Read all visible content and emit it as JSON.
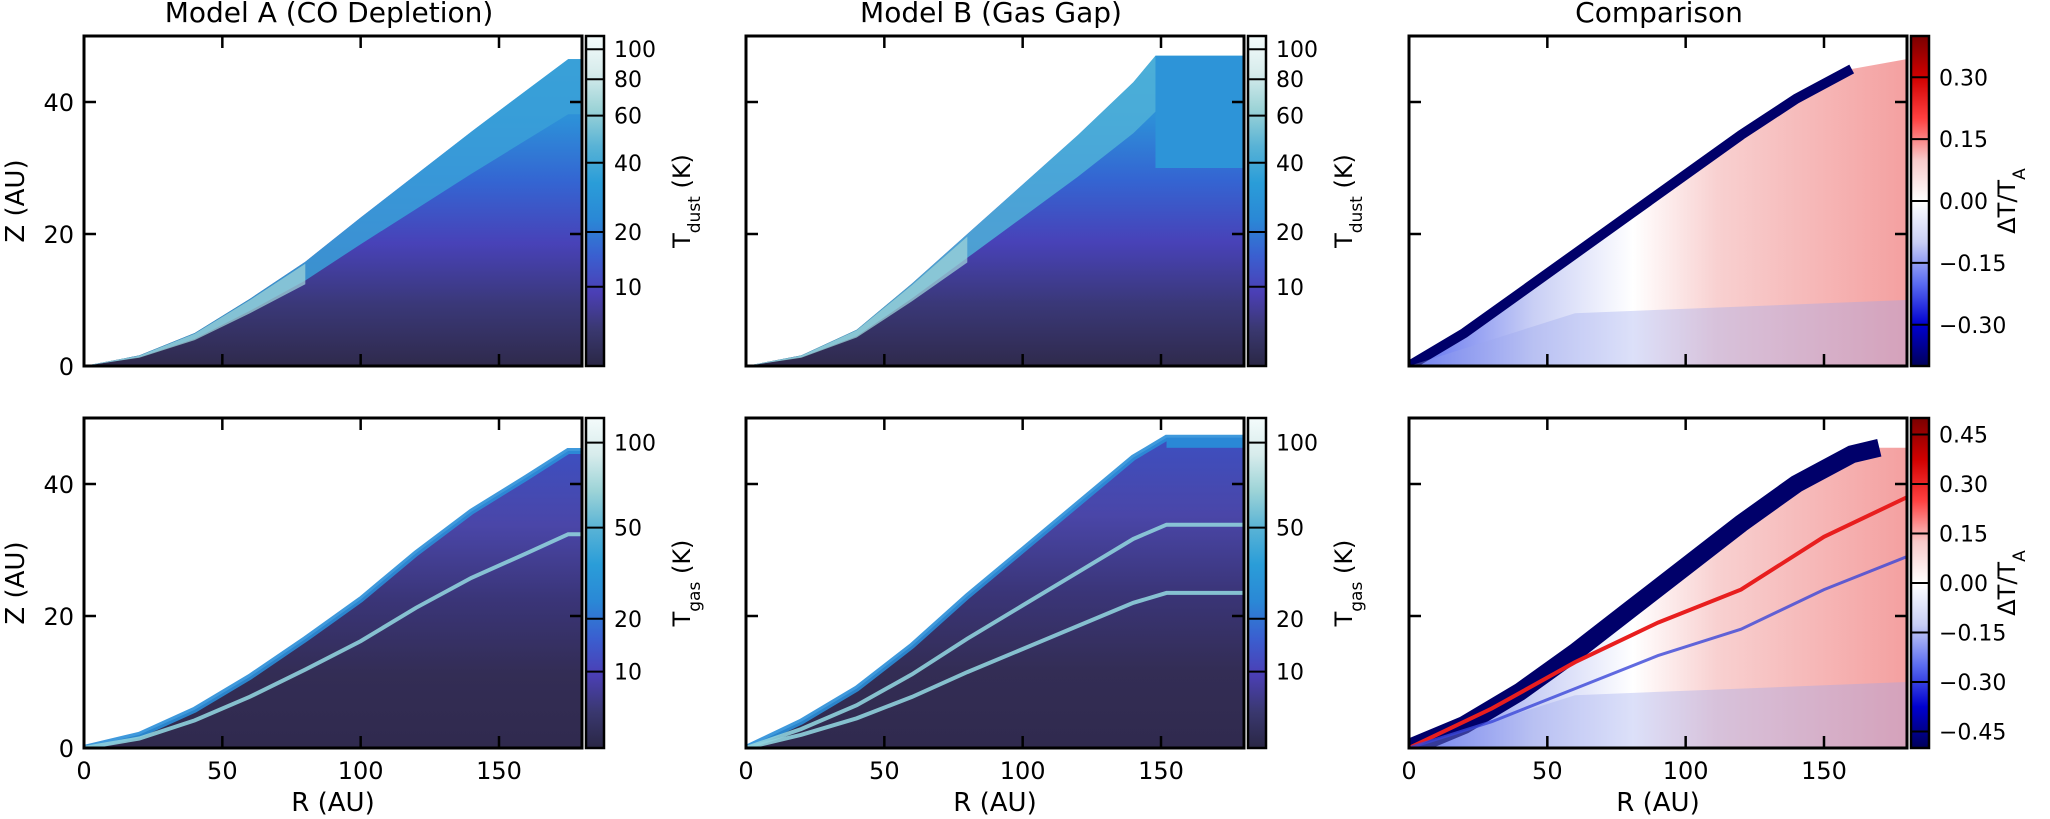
{
  "colors": {
    "temp_map": [
      "#2a2745",
      "#3a3870",
      "#4b3fb5",
      "#3a5fd0",
      "#2a88d6",
      "#2a9dd8",
      "#59b3d6",
      "#9cd3d7",
      "#d7ecec",
      "#f4fbfb"
    ],
    "diff_map": [
      "#00005a",
      "#0000d0",
      "#5a6cf0",
      "#c9cff5",
      "#ffffff",
      "#f8c9c9",
      "#ff4040",
      "#d00000",
      "#7a0000"
    ]
  },
  "titles": {
    "col_a": "Model A (CO Depletion)",
    "col_b": "Model B (Gas Gap)",
    "col_c": "Comparison"
  },
  "chart_data": [
    {
      "type": "heatmap",
      "id": "dust_a",
      "title": "Model A (CO Depletion)",
      "xlabel": "",
      "ylabel": "Z (AU)",
      "xlim": [
        0,
        180
      ],
      "ylim": [
        0,
        50
      ],
      "x_ticks": [
        0,
        50,
        100,
        150
      ],
      "y_ticks": [
        0,
        20,
        40
      ],
      "colorbar": {
        "label": "T_dust (K)",
        "ticks": [
          "10",
          "20",
          "40",
          "60",
          "80",
          "100"
        ],
        "range": [
          0,
          110
        ]
      },
      "surface_z": [
        [
          0,
          0
        ],
        [
          20,
          1.6
        ],
        [
          40,
          5.0
        ],
        [
          60,
          10.2
        ],
        [
          80,
          15.8
        ],
        [
          100,
          22.5
        ],
        [
          120,
          29.0
        ],
        [
          140,
          35.5
        ],
        [
          160,
          41.8
        ],
        [
          175,
          46.5
        ],
        [
          180,
          46.5
        ]
      ],
      "description_values": {
        "warm_layer_T": 75,
        "midplane_T": 8,
        "upper_T": 45
      }
    },
    {
      "type": "heatmap",
      "id": "dust_b",
      "title": "Model B (Gas Gap)",
      "xlabel": "",
      "ylabel": "",
      "xlim": [
        0,
        180
      ],
      "ylim": [
        0,
        50
      ],
      "x_ticks": [
        0,
        50,
        100,
        150
      ],
      "y_ticks": [
        0,
        20,
        40
      ],
      "colorbar": {
        "label": "T_dust (K)",
        "ticks": [
          "10",
          "20",
          "40",
          "60",
          "80",
          "100"
        ],
        "range": [
          0,
          110
        ]
      },
      "surface_z": [
        [
          0,
          0
        ],
        [
          20,
          1.6
        ],
        [
          40,
          5.5
        ],
        [
          60,
          12.5
        ],
        [
          80,
          20.0
        ],
        [
          100,
          27.5
        ],
        [
          120,
          35.0
        ],
        [
          140,
          43.0
        ],
        [
          148,
          47
        ],
        [
          180,
          47
        ]
      ],
      "description_values": {
        "warm_layer_T": 85,
        "midplane_T": 8,
        "upper_T": 45
      }
    },
    {
      "type": "heatmap",
      "id": "dust_diff",
      "title": "Comparison",
      "xlabel": "",
      "ylabel": "",
      "xlim": [
        0,
        180
      ],
      "ylim": [
        0,
        50
      ],
      "x_ticks": [
        0,
        50,
        100,
        150
      ],
      "y_ticks": [
        0,
        20,
        40
      ],
      "colorbar": {
        "label": "ΔT/T_A",
        "ticks": [
          "−0.30",
          "−0.15",
          "0.00",
          "0.15",
          "0.30"
        ],
        "range": [
          -0.4,
          0.4
        ]
      },
      "description_values": {
        "edge_band": -0.45,
        "outer_disk": 0.15,
        "inner_midplane": -0.2
      }
    },
    {
      "type": "heatmap",
      "id": "gas_a",
      "title": "",
      "xlabel": "R (AU)",
      "ylabel": "Z (AU)",
      "xlim": [
        0,
        180
      ],
      "ylim": [
        0,
        50
      ],
      "x_ticks": [
        0,
        50,
        100,
        150
      ],
      "y_ticks": [
        0,
        20,
        40
      ],
      "colorbar": {
        "label": "T_gas (K)",
        "ticks": [
          "10",
          "20",
          "50",
          "100"
        ],
        "range": [
          0,
          120
        ]
      },
      "surface_z": [
        [
          0,
          0
        ],
        [
          20,
          2.0
        ],
        [
          40,
          5.8
        ],
        [
          60,
          10.8
        ],
        [
          80,
          16.5
        ],
        [
          100,
          22.5
        ],
        [
          120,
          29.5
        ],
        [
          140,
          35.8
        ],
        [
          160,
          41.0
        ],
        [
          175,
          45.0
        ],
        [
          180,
          45.0
        ]
      ],
      "description_values": {
        "hot_ridge_T": 110,
        "midplane_T": 8
      }
    },
    {
      "type": "heatmap",
      "id": "gas_b",
      "title": "",
      "xlabel": "R (AU)",
      "ylabel": "",
      "xlim": [
        0,
        180
      ],
      "ylim": [
        0,
        50
      ],
      "x_ticks": [
        0,
        50,
        100,
        150
      ],
      "y_ticks": [
        0,
        20,
        40
      ],
      "colorbar": {
        "label": "T_gas (K)",
        "ticks": [
          "10",
          "20",
          "50",
          "100"
        ],
        "range": [
          0,
          120
        ]
      },
      "surface_z": [
        [
          0,
          0
        ],
        [
          20,
          4.0
        ],
        [
          40,
          9.0
        ],
        [
          60,
          15.5
        ],
        [
          80,
          23.0
        ],
        [
          100,
          30.0
        ],
        [
          120,
          37.0
        ],
        [
          140,
          44.0
        ],
        [
          152,
          47
        ],
        [
          180,
          47
        ]
      ],
      "description_values": {
        "hot_ridge_T": 115,
        "midplane_T": 8
      }
    },
    {
      "type": "heatmap",
      "id": "gas_diff",
      "title": "",
      "xlabel": "R (AU)",
      "ylabel": "",
      "xlim": [
        0,
        180
      ],
      "ylim": [
        0,
        50
      ],
      "x_ticks": [
        0,
        50,
        100,
        150
      ],
      "y_ticks": [
        0,
        20,
        40
      ],
      "colorbar": {
        "label": "ΔT/T_A",
        "ticks": [
          "−0.45",
          "−0.30",
          "−0.15",
          "0.00",
          "0.15",
          "0.30",
          "0.45"
        ],
        "range": [
          -0.5,
          0.5
        ]
      },
      "description_values": {
        "edge_band": -0.5,
        "red_ridge": 0.4,
        "outer_disk": 0.15
      }
    }
  ]
}
